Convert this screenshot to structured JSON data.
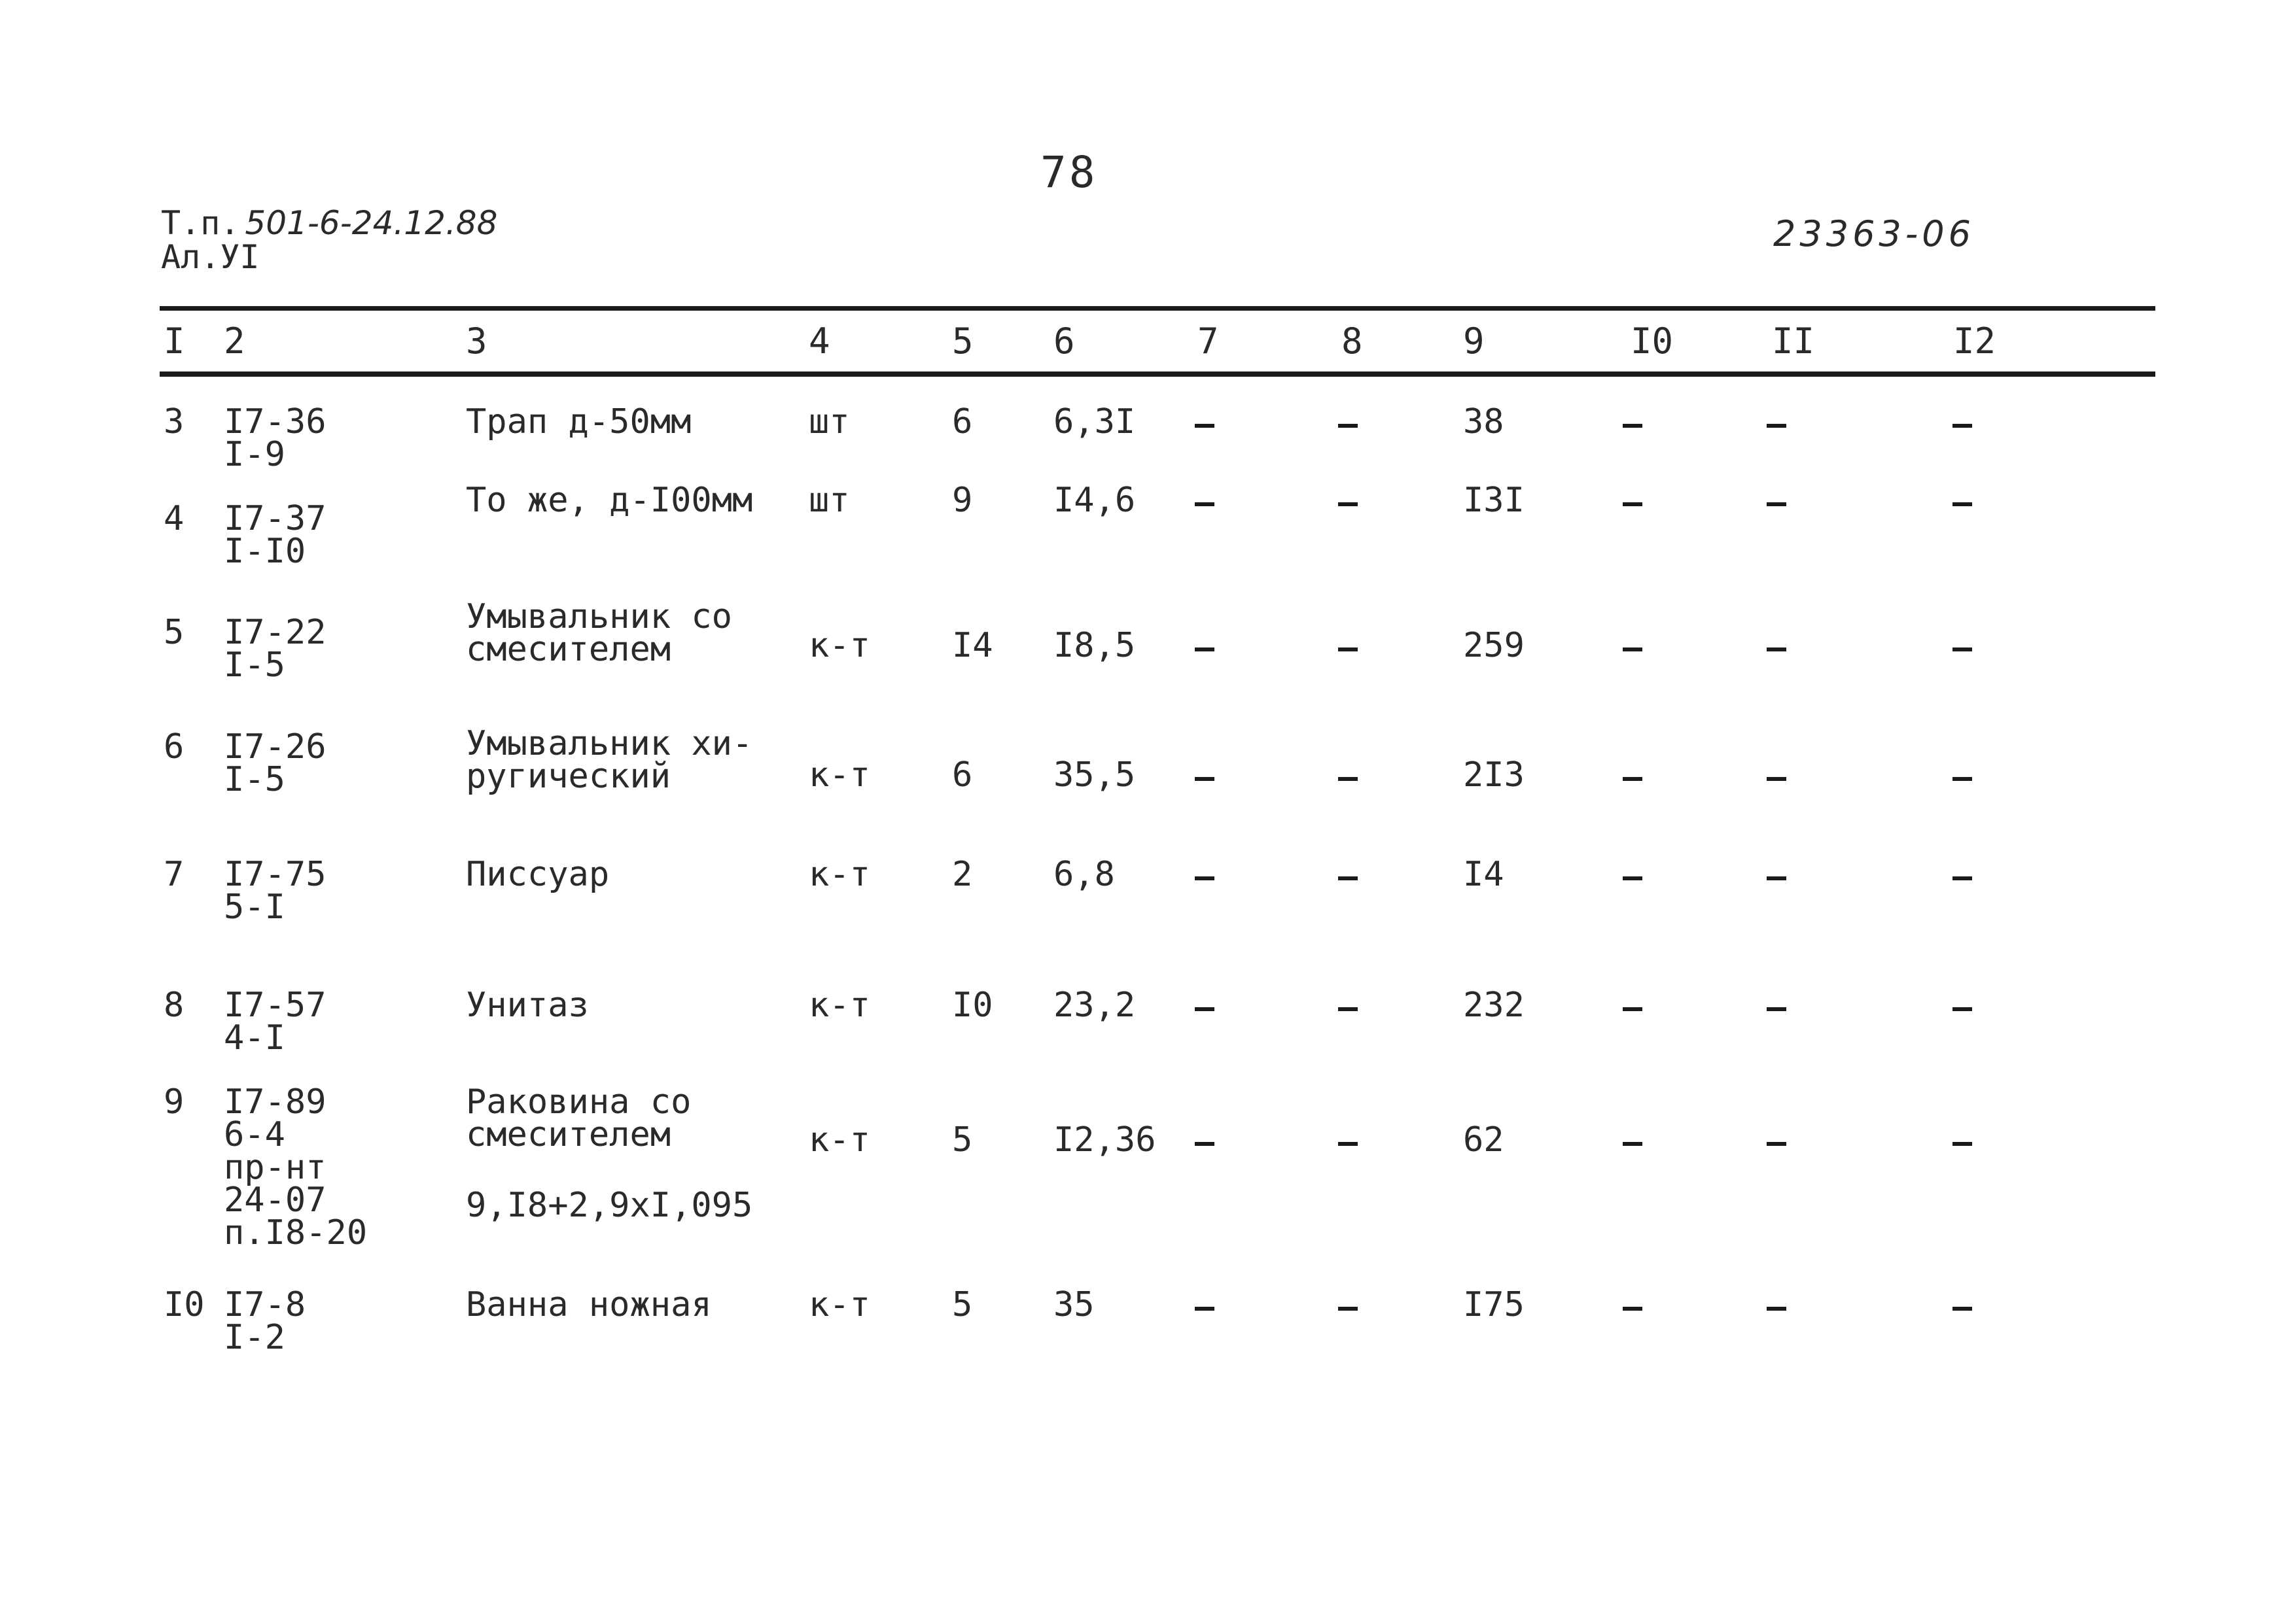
{
  "page_number": "78",
  "doc_ref": {
    "prefix": "Т.п.",
    "number": "501-6-24.12.88",
    "album": "Ал.УI"
  },
  "doc_code": "23363-06",
  "table": {
    "headers": [
      "I",
      "2",
      "3",
      "4",
      "5",
      "6",
      "7",
      "8",
      "9",
      "I0",
      "II",
      "I2"
    ],
    "rows": [
      {
        "c1": "3",
        "c2": [
          "I7-36",
          "I-9"
        ],
        "c3": [
          "Трап д-50мм"
        ],
        "c4": "шт",
        "c5": "6",
        "c6": "6,3I",
        "c9": "38"
      },
      {
        "c1": "4",
        "c2": [
          "I7-37",
          "I-I0"
        ],
        "c3": [
          "То же, д-I00мм"
        ],
        "c4": "шт",
        "c5": "9",
        "c6": "I4,6",
        "c9": "I3I"
      },
      {
        "c1": "5",
        "c2": [
          "I7-22",
          "I-5"
        ],
        "c3": [
          "Умывальник со",
          "смесителем"
        ],
        "c4": "к-т",
        "c5": "I4",
        "c6": "I8,5",
        "c9": "259"
      },
      {
        "c1": "6",
        "c2": [
          "I7-26",
          "I-5"
        ],
        "c3": [
          "Умывальник хи-",
          "ругический"
        ],
        "c4": "к-т",
        "c5": "6",
        "c6": "35,5",
        "c9": "2I3"
      },
      {
        "c1": "7",
        "c2": [
          "I7-75",
          "5-I"
        ],
        "c3": [
          "Писсуар"
        ],
        "c4": "к-т",
        "c5": "2",
        "c6": "6,8",
        "c9": "I4"
      },
      {
        "c1": "8",
        "c2": [
          "I7-57",
          "4-I"
        ],
        "c3": [
          "Унитаз"
        ],
        "c4": "к-т",
        "c5": "I0",
        "c6": "23,2",
        "c9": "232"
      },
      {
        "c1": "9",
        "c2": [
          "I7-89",
          "6-4",
          "пр-нт",
          "24-07",
          "п.I8-20"
        ],
        "c3": [
          "Раковина со",
          "смесителем"
        ],
        "c3_extra": "9,I8+2,9xI,095",
        "c4": "к-т",
        "c5": "5",
        "c6": "I2,36",
        "c9": "62"
      },
      {
        "c1": "I0",
        "c2": [
          "I7-8",
          "I-2"
        ],
        "c3": [
          "Ванна ножная"
        ],
        "c4": "к-т",
        "c5": "5",
        "c6": "35",
        "c9": "I75"
      }
    ]
  }
}
